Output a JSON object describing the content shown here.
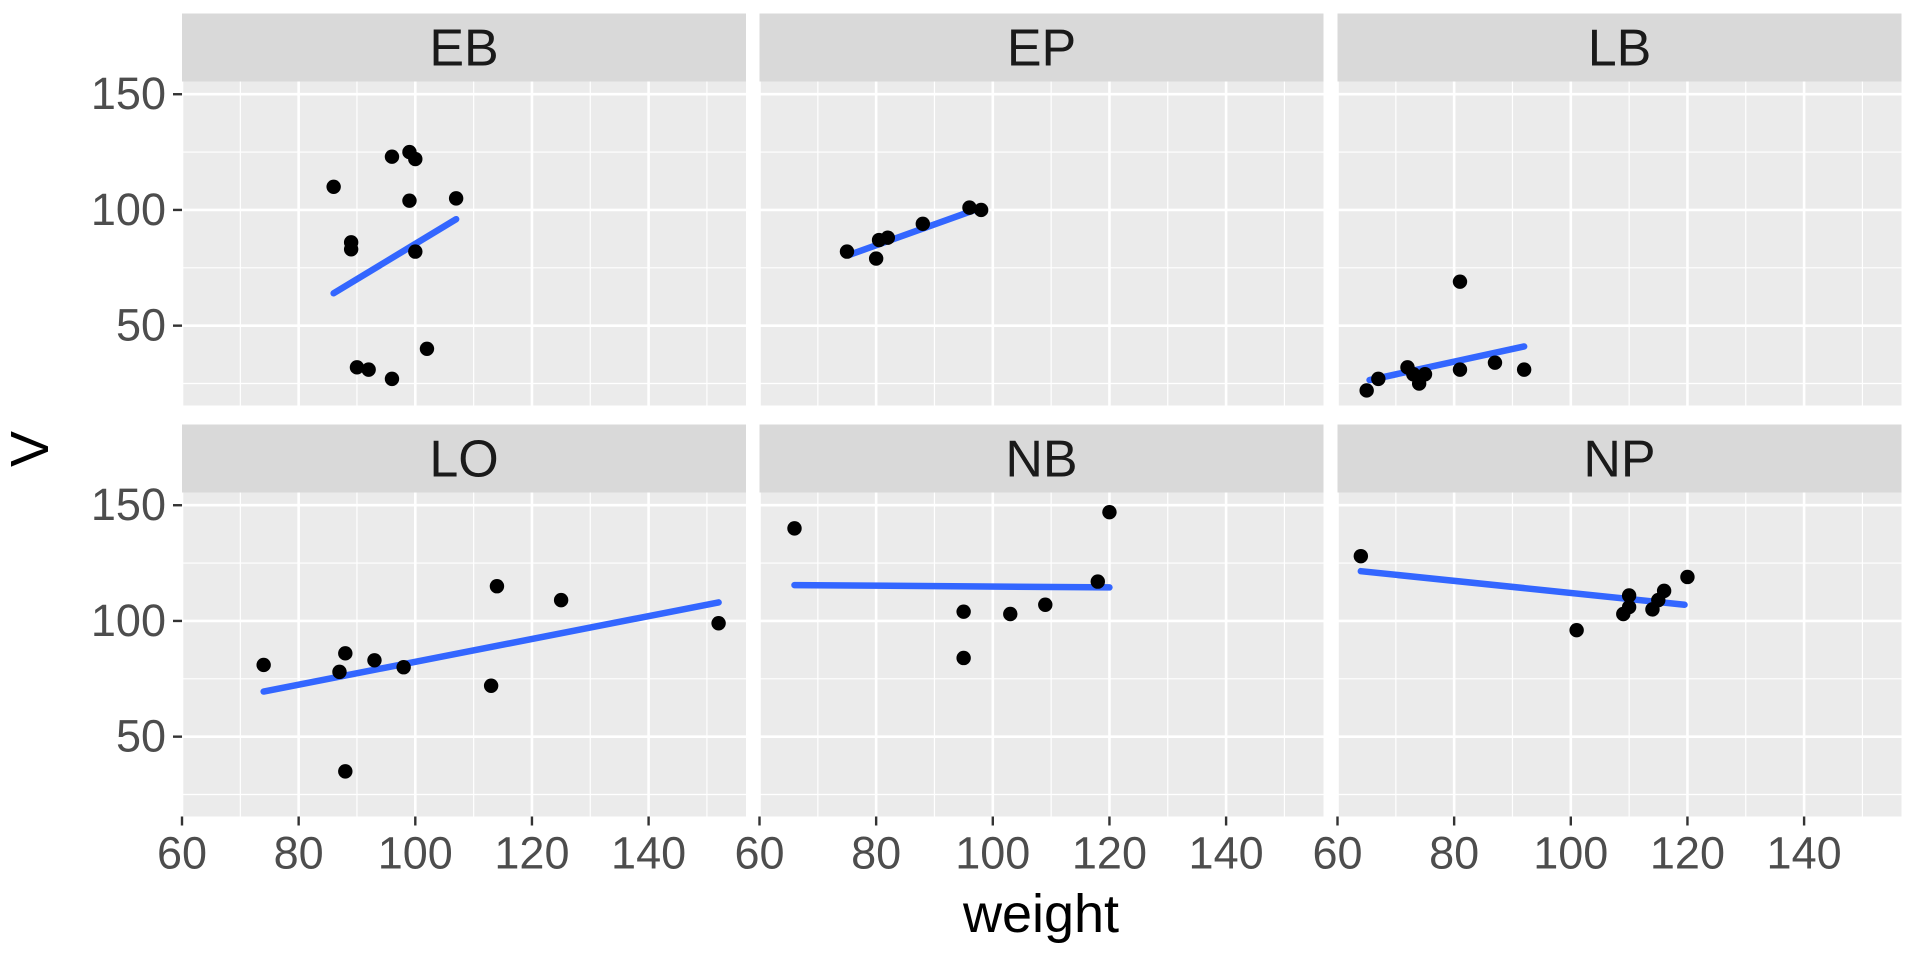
{
  "figure": {
    "type": "faceted-scatterplot-with-trend-lines",
    "background": "#FFFFFF"
  },
  "chart_data": {
    "type": "scatter",
    "title": "",
    "xlabel": "weight",
    "ylabel": "V",
    "xlim": [
      60,
      156.7
    ],
    "ylim": [
      15.5,
      155.5
    ],
    "x_ticks": [
      60,
      80,
      100,
      120,
      140
    ],
    "y_ticks": [
      50,
      100,
      150
    ],
    "x_minor_ticks": [
      70,
      90,
      110,
      130,
      150
    ],
    "y_minor_ticks": [
      25,
      75,
      125
    ],
    "grid": "on",
    "legend": "none",
    "facet_layout": [
      [
        "EB",
        "EP",
        "LB"
      ],
      [
        "LO",
        "NB",
        "NP"
      ]
    ],
    "colors": {
      "panel_background": "#EBEBEB",
      "strip_background": "#D9D9D9",
      "gridline": "#FFFFFF",
      "point": "#000000",
      "trend_line": "#3366FF",
      "tick_text": "#4D4D4D",
      "tick_mark": "#333333",
      "strip_text": "#1A1A1A",
      "axis_title_text": "#000000"
    },
    "panels": [
      {
        "label": "EB",
        "points": [
          [
            86,
            110
          ],
          [
            89,
            86
          ],
          [
            89,
            83
          ],
          [
            90,
            32
          ],
          [
            92,
            31
          ],
          [
            96,
            27
          ],
          [
            96,
            123
          ],
          [
            99,
            125
          ],
          [
            100,
            122
          ],
          [
            99,
            104
          ],
          [
            100,
            82
          ],
          [
            102,
            40
          ],
          [
            107,
            105
          ]
        ],
        "trend": [
          [
            86,
            64
          ],
          [
            107,
            96
          ]
        ]
      },
      {
        "label": "EP",
        "points": [
          [
            75,
            82
          ],
          [
            80,
            79
          ],
          [
            80.5,
            87
          ],
          [
            82,
            88
          ],
          [
            88,
            94
          ],
          [
            96,
            101
          ],
          [
            98,
            100
          ]
        ],
        "trend": [
          [
            75.3,
            80.5
          ],
          [
            98,
            101
          ]
        ]
      },
      {
        "label": "LB",
        "points": [
          [
            65,
            22
          ],
          [
            67,
            27
          ],
          [
            72,
            32
          ],
          [
            73,
            29
          ],
          [
            74,
            25
          ],
          [
            75,
            29
          ],
          [
            81,
            31
          ],
          [
            81,
            69
          ],
          [
            87,
            34
          ],
          [
            92,
            31
          ]
        ],
        "trend": [
          [
            65.5,
            26.5
          ],
          [
            92,
            41
          ]
        ]
      },
      {
        "label": "LO",
        "points": [
          [
            74,
            81
          ],
          [
            87,
            78
          ],
          [
            88,
            86
          ],
          [
            88,
            35
          ],
          [
            93,
            83
          ],
          [
            98,
            80
          ],
          [
            113,
            72
          ],
          [
            114,
            115
          ],
          [
            125,
            109
          ],
          [
            152,
            99
          ]
        ],
        "trend": [
          [
            74,
            69.5
          ],
          [
            152,
            108
          ]
        ]
      },
      {
        "label": "NB",
        "points": [
          [
            66,
            140
          ],
          [
            95,
            104
          ],
          [
            95,
            84
          ],
          [
            103,
            103
          ],
          [
            109,
            107
          ],
          [
            118,
            117
          ],
          [
            120,
            147
          ]
        ],
        "trend": [
          [
            66,
            115.5
          ],
          [
            120,
            114.5
          ]
        ]
      },
      {
        "label": "NP",
        "points": [
          [
            64,
            128
          ],
          [
            101,
            96
          ],
          [
            109,
            103
          ],
          [
            110,
            106
          ],
          [
            110,
            111
          ],
          [
            114,
            105
          ],
          [
            115,
            109
          ],
          [
            116,
            113
          ],
          [
            120,
            119
          ]
        ],
        "trend": [
          [
            64,
            121.5
          ],
          [
            119.5,
            107
          ]
        ]
      }
    ]
  }
}
